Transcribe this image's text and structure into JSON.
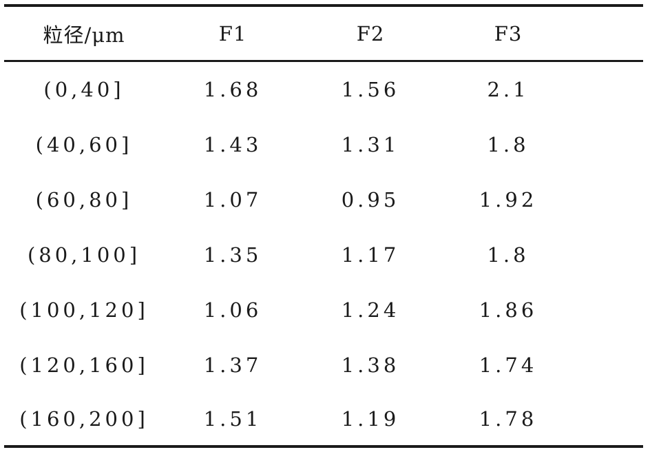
{
  "table": {
    "headers": [
      "粒径/μm",
      "F1",
      "F2",
      "F3"
    ],
    "rows": [
      {
        "range": "(0,40]",
        "f1": "1.68",
        "f2": "1.56",
        "f3": "2.1"
      },
      {
        "range": "(40,60]",
        "f1": "1.43",
        "f2": "1.31",
        "f3": "1.8"
      },
      {
        "range": "(60,80]",
        "f1": "1.07",
        "f2": "0.95",
        "f3": "1.92"
      },
      {
        "range": "(80,100]",
        "f1": "1.35",
        "f2": "1.17",
        "f3": "1.8"
      },
      {
        "range": "(100,120]",
        "f1": "1.06",
        "f2": "1.24",
        "f3": "1.86"
      },
      {
        "range": "(120,160]",
        "f1": "1.37",
        "f2": "1.38",
        "f3": "1.74"
      },
      {
        "range": "(160,200]",
        "f1": "1.51",
        "f2": "1.19",
        "f3": "1.78"
      }
    ]
  }
}
